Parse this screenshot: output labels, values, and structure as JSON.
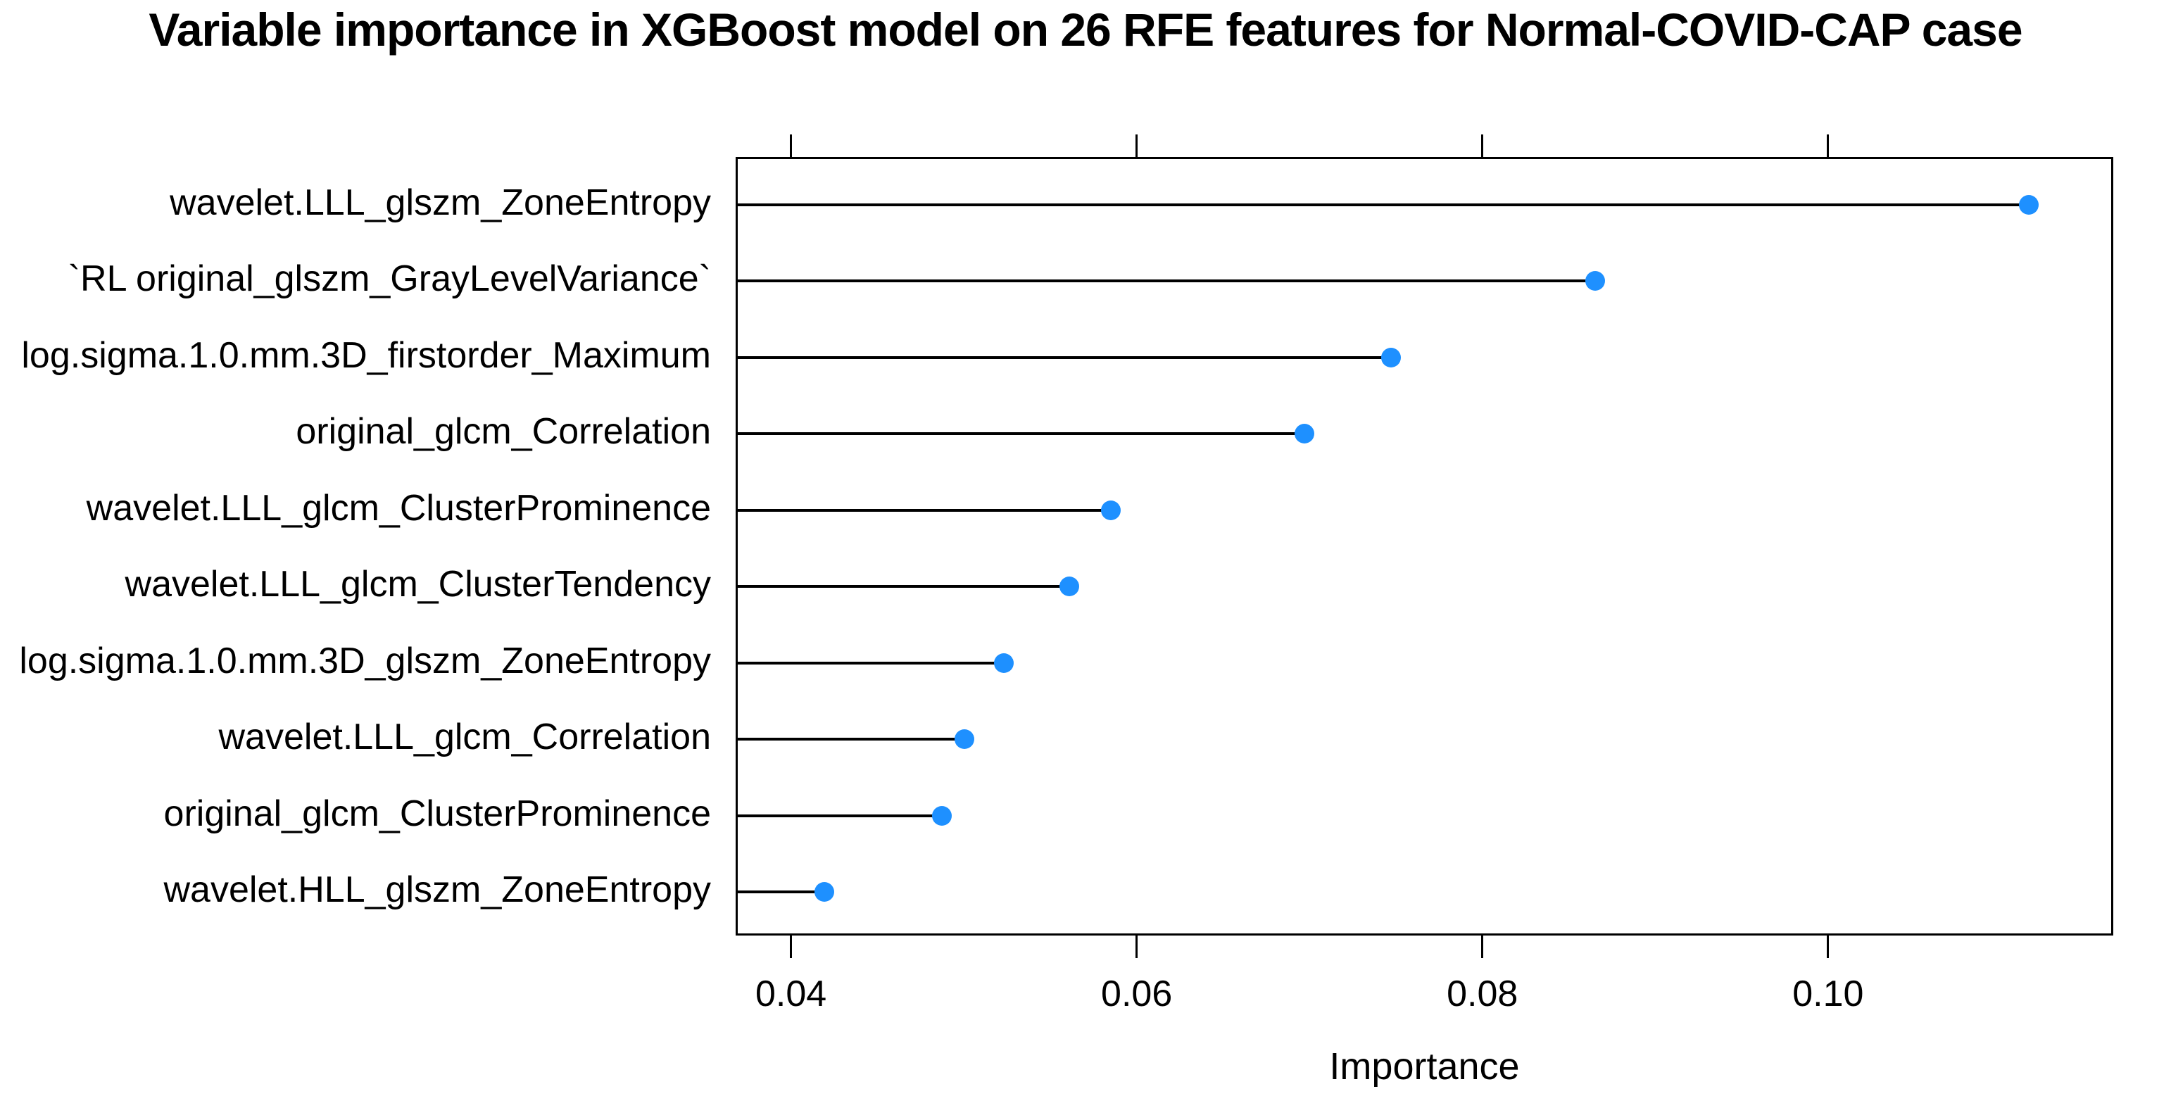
{
  "chart_data": {
    "type": "scatter",
    "subtype": "lollipop-dot-plot",
    "title": "Variable importance in XGBoost model on 26 RFE features for Normal-COVID-CAP case",
    "xlabel": "Importance",
    "ylabel": "",
    "categories": [
      "wavelet.LLL_glszm_ZoneEntropy",
      "`RL original_glszm_GrayLevelVariance`",
      "log.sigma.1.0.mm.3D_firstorder_Maximum",
      "original_glcm_Correlation",
      "wavelet.LLL_glcm_ClusterProminence",
      "wavelet.LLL_glcm_ClusterTendency",
      "log.sigma.1.0.mm.3D_glszm_ZoneEntropy",
      "wavelet.LLL_glcm_Correlation",
      "original_glcm_ClusterProminence",
      "wavelet.HLL_glszm_ZoneEntropy"
    ],
    "values": [
      0.1115,
      0.0864,
      0.0746,
      0.0696,
      0.0584,
      0.056,
      0.0522,
      0.0499,
      0.0486,
      0.0418
    ],
    "xticks": [
      0.04,
      0.06,
      0.08,
      0.1
    ],
    "xtick_labels": [
      "0.04",
      "0.06",
      "0.08",
      "0.10"
    ],
    "xlim": [
      0.0368,
      0.1165
    ],
    "grid": "off",
    "legend": "none",
    "tick_sides": [
      "top",
      "bottom"
    ],
    "dot_color": "#1E90FF",
    "stem_color": "#000000",
    "axis_color": "#000000",
    "background_color": "#ffffff"
  }
}
